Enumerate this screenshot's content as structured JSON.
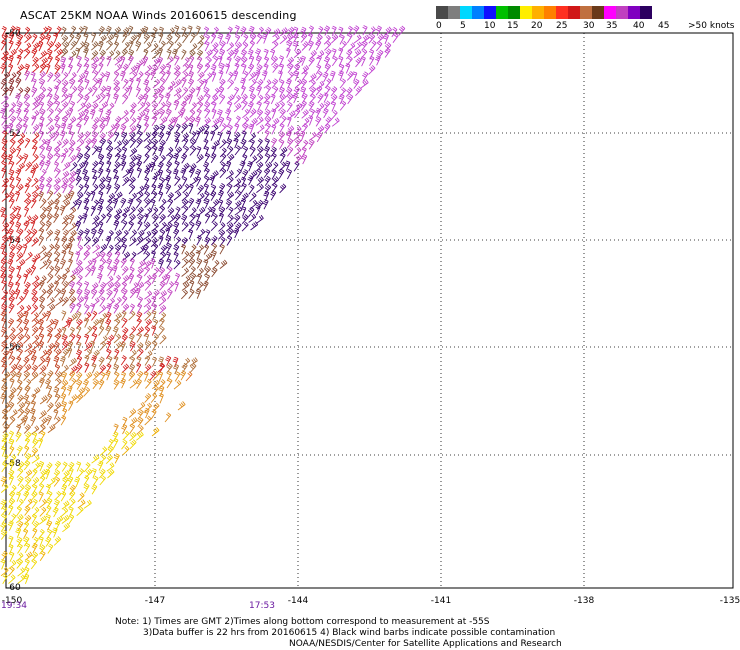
{
  "title": "ASCAT 25KM NOAA Winds 20160615 descending",
  "colorbar": {
    "colors": [
      "#4a4a4a",
      "#7e7e7e",
      "#00d8ff",
      "#0080ff",
      "#1010ff",
      "#00c000",
      "#008a00",
      "#ffee00",
      "#ffb000",
      "#ff8000",
      "#ff3020",
      "#d01818",
      "#c07040",
      "#6a3a1a",
      "#ff00ff",
      "#c040c0",
      "#8000c0",
      "#2c0060"
    ],
    "labels": [
      "0",
      "5",
      "10",
      "15",
      "20",
      "25",
      "30",
      "35",
      "40",
      "45",
      ">50 knots"
    ]
  },
  "axes": {
    "x_labels": [
      "-150",
      "-147",
      "-144",
      "-141",
      "-138",
      "-135"
    ],
    "y_labels": [
      "-50",
      "-52",
      "-54",
      "-56",
      "-58",
      "-60"
    ]
  },
  "times": {
    "left": "19:34",
    "mid": "17:53"
  },
  "notes": {
    "line1": "Note: 1) Times are GMT  2)Times along bottom correspond to measurement at -55S",
    "line2": "3)Data buffer is 22 hrs from 20160615  4) Black wind barbs indicate possible contamination",
    "line3": "NOAA/NESDIS/Center for Satellite Applications and Research"
  }
}
